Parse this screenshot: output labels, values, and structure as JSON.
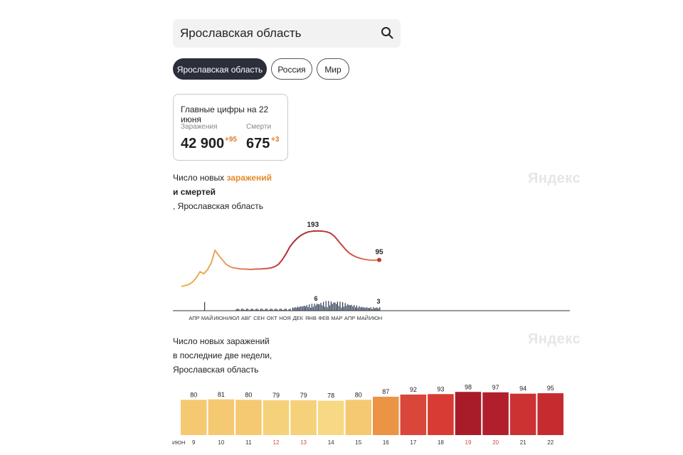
{
  "search": {
    "value": "Ярославская область"
  },
  "tabs": [
    {
      "label": "Ярославская область",
      "active": true
    },
    {
      "label": "Россия",
      "active": false
    },
    {
      "label": "Мир",
      "active": false
    }
  ],
  "summary": {
    "title": "Главные цифры на 22 июня",
    "infections": {
      "label": "Заражения",
      "value": "42 900",
      "delta": "+95"
    },
    "deaths": {
      "label": "Смерти",
      "value": "675",
      "delta": "+3"
    }
  },
  "chart1": {
    "title_part1": "Число новых ",
    "title_highlight": "заражений",
    "title_line2": "и смертей",
    "title_line3": ", Ярославская область",
    "watermark": "Яндекс"
  },
  "chart2": {
    "title_line1": "Число новых заражений",
    "title_line2": "в последние две недели,",
    "title_line3": "Ярославская область",
    "watermark": "Яндекс"
  },
  "chart_data": [
    {
      "type": "line",
      "series": [
        {
          "name": "заражения",
          "peak_label": "193",
          "last_label": "95",
          "values": [
            5,
            8,
            12,
            20,
            35,
            55,
            48,
            62,
            85,
            128,
            110,
            95,
            80,
            72,
            68,
            66,
            64,
            64,
            63,
            63,
            64,
            64,
            65,
            66,
            68,
            72,
            80,
            95,
            115,
            138,
            155,
            168,
            178,
            185,
            190,
            192,
            193,
            193,
            192,
            190,
            185,
            175,
            160,
            145,
            130,
            118,
            110,
            104,
            100,
            97,
            95,
            94,
            94,
            95
          ]
        },
        {
          "name": "смерти",
          "peak_label": "6",
          "last_label": "3"
        }
      ],
      "x_ticks": [
        "АПР",
        "МАЙ",
        "ИЮН",
        "ИЮЛ",
        "АВГ",
        "СЕН",
        "ОКТ",
        "НОЯ",
        "ДЕК",
        "ЯНВ",
        "ФЕВ",
        "МАР",
        "АПР",
        "МАЙ",
        "ИЮН"
      ]
    },
    {
      "type": "bar",
      "categories": [
        "9",
        "10",
        "11",
        "12",
        "13",
        "14",
        "15",
        "16",
        "17",
        "18",
        "19",
        "20",
        "21",
        "22"
      ],
      "values": [
        80,
        81,
        80,
        79,
        79,
        78,
        80,
        87,
        92,
        93,
        98,
        97,
        94,
        95
      ],
      "colors": [
        "#f5c872",
        "#f5c872",
        "#f5c872",
        "#f5d27a",
        "#f5d27a",
        "#f7d884",
        "#f5c872",
        "#eb9446",
        "#d9463a",
        "#d83b33",
        "#a81c2a",
        "#b21f2c",
        "#cc3232",
        "#c52c30"
      ],
      "weekend_categories": [
        "12",
        "13",
        "19",
        "20"
      ],
      "weekend_color": "#d44a3a",
      "month_label": "ИЮН"
    }
  ]
}
